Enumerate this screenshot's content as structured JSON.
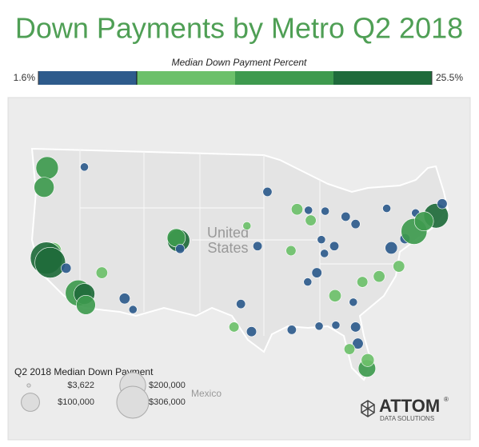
{
  "chart_data": {
    "type": "bubble_map",
    "title": "Down Payments by Metro Q2 2018",
    "color_legend": {
      "title": "Median Down Payment Percent",
      "range": [
        {
          "value": 1.6,
          "label": "1.6%"
        },
        {
          "value": 25.5,
          "label": "25.5%"
        }
      ],
      "colors": [
        "#2e5b8c",
        "#6cc06a",
        "#3e9a4e",
        "#1f6b3b"
      ]
    },
    "size_legend": {
      "title": "Q2 2018 Median Down Payment",
      "values": [
        {
          "value": 3622,
          "label": "$3,622"
        },
        {
          "value": 200000,
          "label": "$200,000"
        },
        {
          "value": 100000,
          "label": "$100,000"
        },
        {
          "value": 306000,
          "label": "$306,000"
        }
      ]
    },
    "map_labels": [
      "United",
      "States",
      "Mexico"
    ],
    "bubbles": {
      "lon": [
        -122.3,
        -122.7,
        -117.4,
        -121.5,
        -122.4,
        -121.9,
        -119.8,
        -118.2,
        -117.4,
        -117.2,
        -115.1,
        -112.1,
        -111.0,
        -105.0,
        -105.3,
        -104.8,
        -94.6,
        -96.0,
        -90.2,
        -93.3,
        -89.4,
        -87.6,
        -87.9,
        -83.0,
        -85.7,
        -81.7,
        -77.6,
        -73.8,
        -96.8,
        -95.4,
        -97.7,
        -84.4,
        -86.8,
        -80.8,
        -78.6,
        -76.0,
        -77.0,
        -75.2,
        -74.0,
        -71.1,
        -72.7,
        -70.3,
        -81.7,
        -81.4,
        -82.5,
        -80.2,
        -80.1,
        -90.1,
        -85.8,
        -84.5,
        -86.2,
        -88.0,
        -82.0,
        -86.5,
        -84.3
      ],
      "lat": [
        47.6,
        45.5,
        47.7,
        38.6,
        37.8,
        37.3,
        36.7,
        34.0,
        33.9,
        32.7,
        36.2,
        33.4,
        32.2,
        39.7,
        40.0,
        38.8,
        39.1,
        41.3,
        38.6,
        45.0,
        43.1,
        41.9,
        43.0,
        42.3,
        42.9,
        41.5,
        43.2,
        42.7,
        32.8,
        29.8,
        30.3,
        33.7,
        36.2,
        35.2,
        35.8,
        36.9,
        38.9,
        39.9,
        40.7,
        42.4,
        41.8,
        43.7,
        30.3,
        28.5,
        27.9,
        25.8,
        26.7,
        30.0,
        38.3,
        39.1,
        39.8,
        35.2,
        33.0,
        30.4,
        30.5
      ],
      "amount": [
        150000,
        120000,
        20000,
        80000,
        306000,
        280000,
        30000,
        200000,
        130000,
        110000,
        40000,
        35000,
        20000,
        150000,
        100000,
        25000,
        25000,
        20000,
        30000,
        25000,
        40000,
        35000,
        20000,
        25000,
        20000,
        25000,
        20000,
        20000,
        25000,
        30000,
        30000,
        45000,
        30000,
        35000,
        40000,
        40000,
        45000,
        30000,
        200000,
        180000,
        110000,
        30000,
        30000,
        35000,
        35000,
        90000,
        50000,
        25000,
        20000,
        25000,
        20000,
        20000,
        20000,
        20000,
        20000
      ],
      "colors": [
        "#3e9a4e",
        "#3e9a4e",
        "#2e5b8c",
        "#6cc06a",
        "#1f6b3b",
        "#1f6b3b",
        "#2e5b8c",
        "#3e9a4e",
        "#1f6b3b",
        "#3e9a4e",
        "#6cc06a",
        "#2e5b8c",
        "#2e5b8c",
        "#1f6b3b",
        "#3e9a4e",
        "#2e5b8c",
        "#2e5b8c",
        "#6cc06a",
        "#6cc06a",
        "#2e5b8c",
        "#6cc06a",
        "#6cc06a",
        "#2e5b8c",
        "#2e5b8c",
        "#2e5b8c",
        "#2e5b8c",
        "#2e5b8c",
        "#2e5b8c",
        "#2e5b8c",
        "#2e5b8c",
        "#6cc06a",
        "#6cc06a",
        "#2e5b8c",
        "#6cc06a",
        "#6cc06a",
        "#6cc06a",
        "#2e5b8c",
        "#2e5b8c",
        "#3e9a4e",
        "#1f6b3b",
        "#3e9a4e",
        "#2e5b8c",
        "#2e5b8c",
        "#2e5b8c",
        "#6cc06a",
        "#3e9a4e",
        "#6cc06a",
        "#2e5b8c",
        "#2e5b8c",
        "#2e5b8c",
        "#2e5b8c",
        "#2e5b8c",
        "#2e5b8c",
        "#2e5b8c",
        "#2e5b8c"
      ]
    }
  },
  "logo": {
    "name": "ATTOM",
    "mark": "®",
    "tagline": "DATA SOLUTIONS"
  }
}
